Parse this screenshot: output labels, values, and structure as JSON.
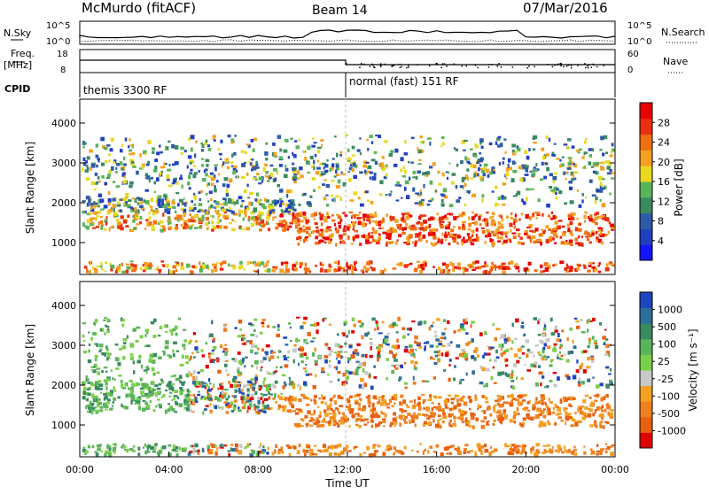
{
  "header": {
    "station": "McMurdo (fitACF)",
    "beam": "Beam 14",
    "date": "07/Mar/2016"
  },
  "panel_labels": {
    "nsky_left": "N.Sky",
    "nsearch_right": "N.Search",
    "freq_left": "Freq.",
    "freq_unit": "[MHz]",
    "nave_right": "Nave",
    "cpid": "CPID"
  },
  "cpid_segments": [
    "themis 3300 RF",
    "normal (fast) 151 RF"
  ],
  "colors": {
    "power_scale": [
      "#1414ff",
      "#2040c0",
      "#2e5aa8",
      "#3a8a60",
      "#5ab45a",
      "#e8d820",
      "#f5a020",
      "#f07010",
      "#e83010",
      "#e80000"
    ],
    "velocity_scale": [
      "#1e46c0",
      "#2e6e9a",
      "#3a8a60",
      "#5ab45a",
      "#7ad04a",
      "#c8c8c8",
      "#f5a020",
      "#f08020",
      "#e86010",
      "#e00000"
    ]
  },
  "chart_data": [
    {
      "type": "line",
      "title": "",
      "series": [
        {
          "name": "N.Sky",
          "values": []
        },
        {
          "name": "N.Search",
          "values": []
        }
      ],
      "y_ticks_left": [
        "10^5",
        "10^0"
      ],
      "y_ticks_right": [
        "10^5",
        "10^0"
      ]
    },
    {
      "type": "line",
      "series": [
        {
          "name": "Freq.",
          "values": []
        },
        {
          "name": "Nave",
          "values": []
        }
      ],
      "y_ticks_left": [
        "18",
        "8"
      ],
      "y_ticks_right": [
        "60",
        "0"
      ]
    },
    {
      "type": "heatmap",
      "ylabel": "Slant Range [km]",
      "xlabel": "Time UT",
      "yticks": [
        "1000",
        "2000",
        "3000",
        "4000"
      ],
      "xticks": [
        "00:00",
        "04:00",
        "08:00",
        "12:00",
        "16:00",
        "20:00",
        "00:00"
      ],
      "colorbar_label": "Power [dB]",
      "colorbar_ticks": [
        "4",
        "8",
        "12",
        "16",
        "20",
        "24",
        "28"
      ],
      "ylim": [
        200,
        4600
      ]
    },
    {
      "type": "heatmap",
      "ylabel": "Slant Range [km]",
      "xlabel": "Time UT",
      "yticks": [
        "1000",
        "2000",
        "3000",
        "4000"
      ],
      "xticks": [
        "00:00",
        "04:00",
        "08:00",
        "12:00",
        "16:00",
        "20:00",
        "00:00"
      ],
      "colorbar_label": "Velocity [m s⁻¹]",
      "colorbar_ticks": [
        "1000",
        "500",
        "100",
        "25",
        "-25",
        "-100",
        "-500",
        "-1000"
      ],
      "ylim": [
        200,
        4600
      ]
    }
  ]
}
